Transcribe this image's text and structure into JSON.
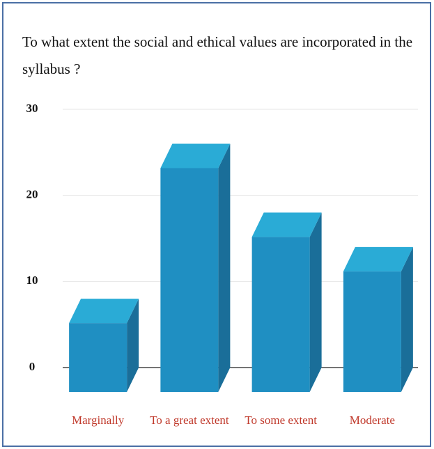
{
  "chart_data": {
    "type": "bar3d",
    "title_lines": [
      "To what extent the social and ethical values are incorporated in the",
      "syllabus ?"
    ],
    "categories": [
      "Marginally",
      "To a great extent",
      "To some extent",
      "Moderate"
    ],
    "values": [
      8,
      26,
      18,
      14
    ],
    "color": "#1f8fc2",
    "ylim": [
      0,
      30
    ],
    "yticks": [
      0,
      10,
      20,
      30
    ],
    "grid": true
  }
}
